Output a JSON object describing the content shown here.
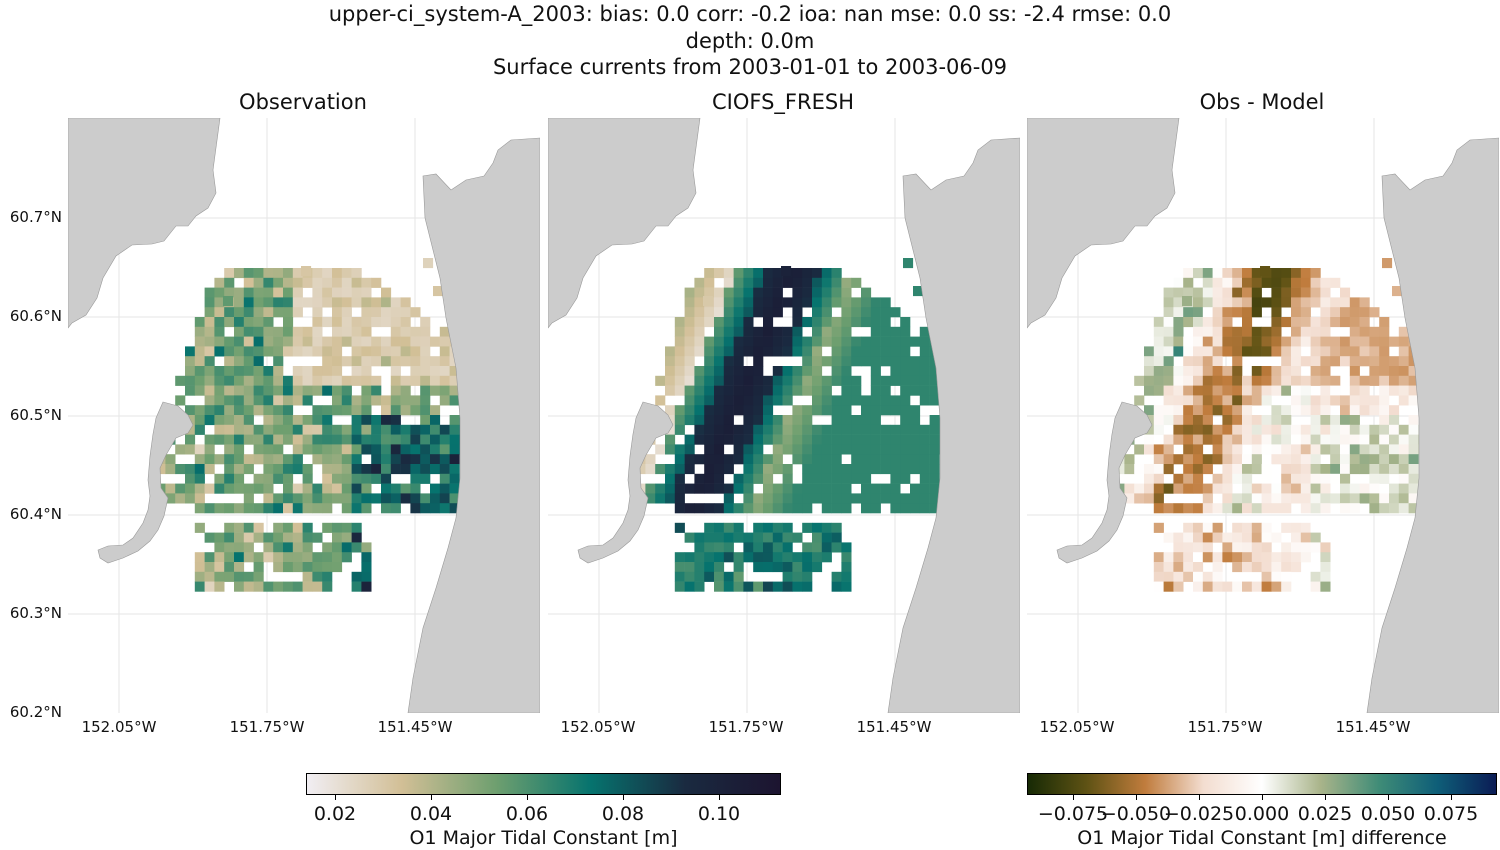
{
  "figure": {
    "title_line1": "upper-ci_system-A_2003: bias: 0.0  corr: -0.2  ioa: nan  mse: 0.0  ss: -2.4  rmse: 0.0",
    "title_line2": "depth: 0.0m",
    "title_line3": "Surface currents from 2003-01-01 to 2003-06-09"
  },
  "panels": [
    {
      "title": "Observation"
    },
    {
      "title": "CIOFS_FRESH"
    },
    {
      "title": "Obs - Model"
    }
  ],
  "lat_ticks": [
    "60.7°N",
    "60.6°N",
    "60.5°N",
    "60.4°N",
    "60.3°N",
    "60.2°N"
  ],
  "lon_ticks": [
    "152.05°W",
    "151.75°W",
    "151.45°W"
  ],
  "colorbar_main": {
    "label": "O1 Major Tidal Constant [m]",
    "ticks": [
      "0.02",
      "0.04",
      "0.06",
      "0.08",
      "0.10"
    ],
    "range": [
      0.014,
      0.112
    ],
    "colors": [
      "#f1eef3",
      "#d2bf96",
      "#6e9f6f",
      "#06736e",
      "#1a2a40",
      "#1c1430"
    ]
  },
  "colorbar_diff": {
    "label": "O1 Major Tidal Constant [m] difference",
    "ticks": [
      "−0.075",
      "−0.050",
      "−0.025",
      "0.000",
      "0.025",
      "0.050",
      "0.075"
    ],
    "range": [
      -0.093,
      0.093
    ],
    "colors": [
      "#172a05",
      "#5e5214",
      "#c07c3d",
      "#f3ddd0",
      "#ffffff",
      "#a9b48a",
      "#3f8c77",
      "#0e5e78",
      "#0b1c55"
    ]
  },
  "colors": {
    "land": "#cccccc",
    "grid": "#e6e6e6"
  }
}
